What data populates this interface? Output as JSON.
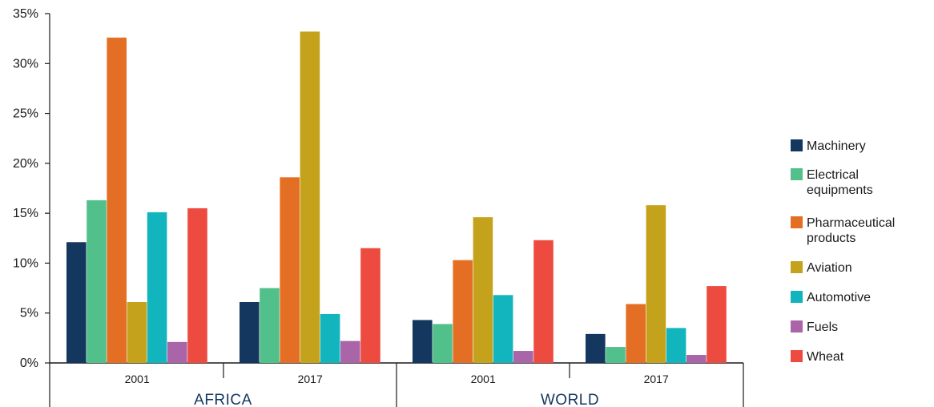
{
  "chart_data": {
    "type": "bar",
    "y_unit": "%",
    "ylim": [
      0,
      35
    ],
    "yticks": [
      "0%",
      "5%",
      "10%",
      "15%",
      "20%",
      "25%",
      "30%",
      "35%"
    ],
    "grid": false,
    "legend_position": "right",
    "groups": [
      {
        "label": "AFRICA",
        "years": [
          {
            "label": "2001",
            "values": [
              12.1,
              16.3,
              32.6,
              6.1,
              15.1,
              2.1,
              15.5
            ]
          },
          {
            "label": "2017",
            "values": [
              6.1,
              7.5,
              18.6,
              33.2,
              4.9,
              2.2,
              11.5
            ]
          }
        ]
      },
      {
        "label": "WORLD",
        "years": [
          {
            "label": "2001",
            "values": [
              4.3,
              3.9,
              10.3,
              14.6,
              6.8,
              1.2,
              12.3
            ]
          },
          {
            "label": "2017",
            "values": [
              2.9,
              1.6,
              5.9,
              15.8,
              3.5,
              0.8,
              7.7
            ]
          }
        ]
      }
    ],
    "series": [
      {
        "name": [
          "Machinery"
        ],
        "color": "#14375f"
      },
      {
        "name": [
          "Electrical",
          "equipments"
        ],
        "color": "#52c08a"
      },
      {
        "name": [
          "Pharmaceutical",
          "products"
        ],
        "color": "#e46f24"
      },
      {
        "name": [
          "Aviation"
        ],
        "color": "#c4a21c"
      },
      {
        "name": [
          "Automotive"
        ],
        "color": "#12b5bd"
      },
      {
        "name": [
          "Fuels"
        ],
        "color": "#a965a8"
      },
      {
        "name": [
          "Wheat"
        ],
        "color": "#ee4b40"
      }
    ]
  }
}
